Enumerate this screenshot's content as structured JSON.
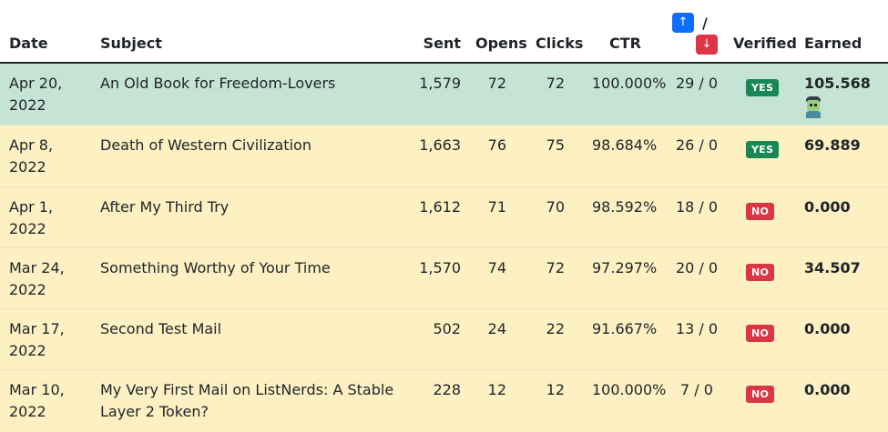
{
  "header": {
    "date": "Date",
    "subject": "Subject",
    "sent": "Sent",
    "opens": "Opens",
    "clicks": "Clicks",
    "ctr": "CTR",
    "votes_up": "↑",
    "votes_slash": "/",
    "votes_down": "↓",
    "verified": "Verified",
    "earned": "Earned"
  },
  "rows": [
    {
      "date": "Apr 20, 2022",
      "subject": "An Old Book for Freedom-Lovers",
      "sent": "1,579",
      "opens": "72",
      "clicks": "72",
      "ctr": "100.000%",
      "votes": "29 / 0",
      "verified": "YES",
      "earned": "105.568",
      "icon": "zombie-icon"
    },
    {
      "date": "Apr 8, 2022",
      "subject": "Death of Western Civilization",
      "sent": "1,663",
      "opens": "76",
      "clicks": "75",
      "ctr": "98.684%",
      "votes": "26 / 0",
      "verified": "YES",
      "earned": "69.889"
    },
    {
      "date": "Apr 1, 2022",
      "subject": "After My Third Try",
      "sent": "1,612",
      "opens": "71",
      "clicks": "70",
      "ctr": "98.592%",
      "votes": "18 / 0",
      "verified": "NO",
      "earned": "0.000"
    },
    {
      "date": "Mar 24, 2022",
      "subject": "Something Worthy of Your Time",
      "sent": "1,570",
      "opens": "74",
      "clicks": "72",
      "ctr": "97.297%",
      "votes": "20 / 0",
      "verified": "NO",
      "earned": "34.507"
    },
    {
      "date": "Mar 17, 2022",
      "subject": "Second Test Mail",
      "sent": "502",
      "opens": "24",
      "clicks": "22",
      "ctr": "91.667%",
      "votes": "13 / 0",
      "verified": "NO",
      "earned": "0.000"
    },
    {
      "date": "Mar 10, 2022",
      "subject": "My Very First Mail on ListNerds: A Stable Layer 2 Token?",
      "sent": "228",
      "opens": "12",
      "clicks": "12",
      "ctr": "100.000%",
      "votes": "7 / 0",
      "verified": "NO",
      "earned": "0.000"
    }
  ],
  "colors": {
    "highlight_row": "#c6e4d6",
    "warning_row": "#fdf0c3",
    "yes_badge": "#198754",
    "no_badge": "#dc3545",
    "vote_up": "#0d6efd",
    "vote_down": "#dc3545"
  }
}
